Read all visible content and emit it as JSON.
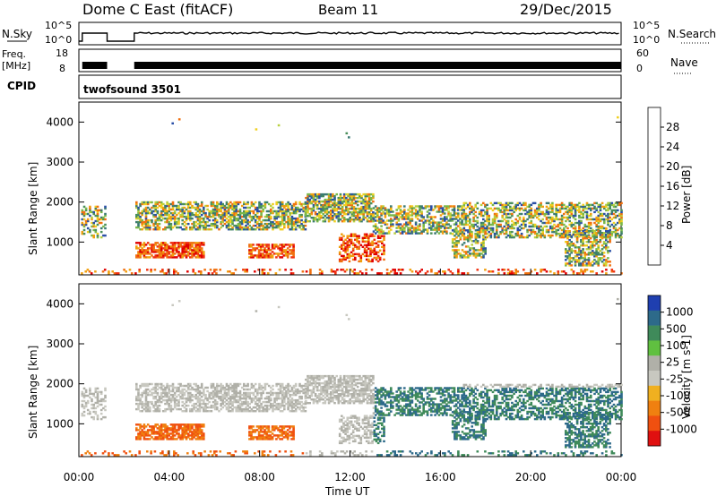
{
  "header": {
    "title": "Dome C East (fitACF)",
    "beam": "Beam 11",
    "date": "29/Dec/2015"
  },
  "top_panels": {
    "nsky_label": "N.Sky",
    "nsky_scale_top": "10^5",
    "nsky_scale_bottom": "10^0",
    "nsearch_label": "N.Search",
    "nsearch_scale_top": "10^5",
    "nsearch_scale_bottom": "10^0",
    "freq_label": "Freq.",
    "freq_unit": "[MHz]",
    "freq_top": "18",
    "freq_bottom": "8",
    "nave_label": "Nave",
    "nave_top": "60",
    "nave_bottom": "0",
    "cpid_label": "CPID",
    "cpid_value": "twofsound 3501"
  },
  "chart_data": [
    {
      "type": "heatmap",
      "name": "Power",
      "ylabel": "Slant Range [km]",
      "ylim": [
        180,
        4500
      ],
      "yticks": [
        "1000",
        "2000",
        "3000",
        "4000"
      ],
      "ytick_values": [
        1000,
        2000,
        3000,
        4000
      ],
      "colorbar_label": "Power [dB]",
      "colorbar_ticks": [
        "4",
        "8",
        "12",
        "16",
        "20",
        "24",
        "28"
      ],
      "colorbar_tick_values": [
        4,
        8,
        12,
        16,
        20,
        24,
        28
      ],
      "colorbar_range": [
        0,
        32
      ],
      "colors": [
        "#1a1aff",
        "#2a4fa6",
        "#3b7a72",
        "#4a8f5a",
        "#7ab84a",
        "#b8d040",
        "#f0d020",
        "#f0a010",
        "#f07010",
        "#f03010",
        "#e00000"
      ]
    },
    {
      "type": "heatmap",
      "name": "Velocity",
      "ylabel": "Slant Range [km]",
      "ylim": [
        180,
        4500
      ],
      "yticks": [
        "1000",
        "2000",
        "3000",
        "4000"
      ],
      "ytick_values": [
        1000,
        2000,
        3000,
        4000
      ],
      "xlabel": "Time UT",
      "xticks": [
        "00:00",
        "04:00",
        "08:00",
        "12:00",
        "16:00",
        "20:00",
        "00:00"
      ],
      "xtick_values_hours": [
        0,
        4,
        8,
        12,
        16,
        20,
        24
      ],
      "colorbar_label": "Velocity [m s-1]",
      "colorbar_ticks": [
        "1000",
        "500",
        "100",
        "25",
        "-25",
        "-100",
        "-500",
        "-1000"
      ],
      "colors": [
        "#1f3fb0",
        "#2d6a8a",
        "#3f8a5a",
        "#60c040",
        "#b0b0a8",
        "#c8c8c0",
        "#f0b020",
        "#f08010",
        "#f05010",
        "#e01010"
      ]
    }
  ]
}
